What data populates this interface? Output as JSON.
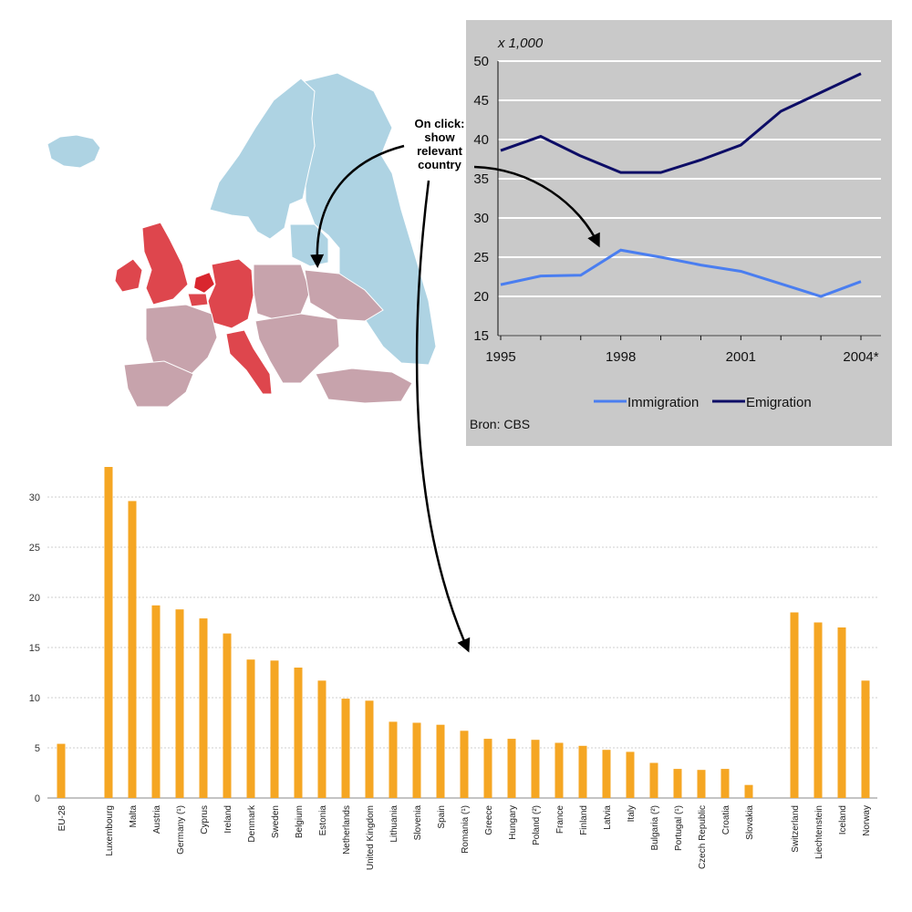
{
  "annotation": {
    "lines": [
      "On click:",
      "show",
      "relevant",
      "country"
    ]
  },
  "map": {
    "highlight_color": "#d9262e",
    "base_color": "#c7a3ac",
    "north_color": "#aed3e3"
  },
  "chart_data": [
    {
      "type": "line",
      "unit_label": "x 1,000",
      "x": [
        1995,
        1996,
        1997,
        1998,
        1999,
        2000,
        2001,
        2002,
        2003,
        2004
      ],
      "x_tick_labels": [
        "1995",
        "1998",
        "2001",
        "2004*"
      ],
      "x_tick_values": [
        1995,
        1998,
        2001,
        2004
      ],
      "ylim": [
        15,
        50
      ],
      "y_ticks": [
        15,
        20,
        25,
        30,
        35,
        40,
        45,
        50
      ],
      "grid": true,
      "legend_position": "bottom",
      "series": [
        {
          "name": "Immigration",
          "color": "#4a7ef0",
          "values": [
            21.5,
            22.6,
            22.7,
            25.9,
            25.0,
            24.0,
            23.2,
            21.6,
            20.0,
            21.9
          ]
        },
        {
          "name": "Emigration",
          "color": "#0d0d66",
          "values": [
            38.6,
            40.4,
            37.9,
            35.8,
            35.8,
            37.4,
            39.3,
            43.6,
            46.0,
            48.4
          ]
        }
      ],
      "source": "Bron: CBS"
    },
    {
      "type": "bar",
      "color": "#f5a623",
      "categories": [
        "EU-28",
        "Luxembourg",
        "Malta",
        "Austria",
        "Germany (¹)",
        "Cyprus",
        "Ireland",
        "Denmark",
        "Sweden",
        "Belgium",
        "Estonia",
        "Netherlands",
        "United Kingdom",
        "Lithuania",
        "Slovenia",
        "Spain",
        "Romania (¹)",
        "Greece",
        "Hungary",
        "Poland (²)",
        "France",
        "Finland",
        "Latvia",
        "Italy",
        "Bulgaria (²)",
        "Portugal (¹)",
        "Czech Republic",
        "Croatia",
        "Slovakia",
        "Switzerland",
        "Liechtenstein",
        "Iceland",
        "Norway"
      ],
      "values": [
        5.4,
        33.0,
        29.6,
        19.2,
        18.8,
        17.9,
        16.4,
        13.8,
        13.7,
        13.0,
        11.7,
        9.9,
        9.7,
        7.6,
        7.5,
        7.3,
        6.7,
        5.9,
        5.9,
        5.8,
        5.5,
        5.2,
        4.8,
        4.6,
        3.5,
        2.9,
        2.8,
        2.9,
        1.3,
        18.5,
        17.5,
        17.0,
        11.7
      ],
      "ylim": [
        0,
        35
      ],
      "y_ticks": [
        0,
        5,
        10,
        15,
        20,
        25,
        30
      ],
      "grid": true
    }
  ]
}
